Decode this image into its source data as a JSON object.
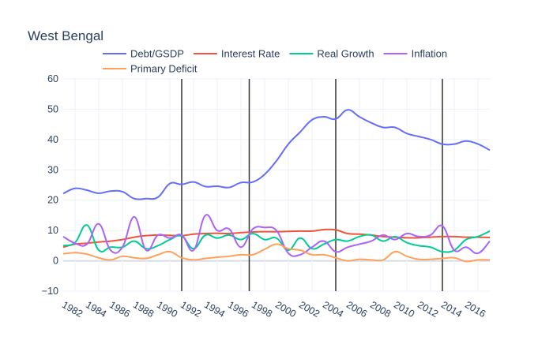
{
  "chart_data": {
    "type": "line",
    "title": "West Bengal",
    "xlabel": "",
    "ylabel": "",
    "xlim": [
      1981,
      2017
    ],
    "ylim": [
      -10,
      60
    ],
    "yticks": [
      -10,
      0,
      10,
      20,
      30,
      40,
      50,
      60
    ],
    "xticks": [
      1982,
      1984,
      1986,
      1988,
      1990,
      1992,
      1994,
      1996,
      1998,
      2000,
      2002,
      2004,
      2006,
      2008,
      2010,
      2012,
      2014,
      2016
    ],
    "grid": true,
    "legend_position": "top",
    "vertical_lines": [
      1991,
      1996.7,
      2004,
      2013
    ],
    "x": [
      1981,
      1982,
      1983,
      1984,
      1985,
      1986,
      1987,
      1988,
      1989,
      1990,
      1991,
      1992,
      1993,
      1994,
      1995,
      1996,
      1997,
      1998,
      1999,
      2000,
      2001,
      2002,
      2003,
      2004,
      2005,
      2006,
      2007,
      2008,
      2009,
      2010,
      2011,
      2012,
      2013,
      2014,
      2015,
      2016,
      2017
    ],
    "series": [
      {
        "name": "Debt/GSDP",
        "color": "#636efa",
        "values": [
          22.2,
          23.9,
          23.3,
          22.3,
          23.0,
          22.8,
          20.5,
          20.5,
          21.0,
          25.5,
          25.2,
          26.0,
          24.5,
          24.6,
          24.2,
          25.8,
          26.0,
          28.5,
          33.0,
          38.5,
          42.5,
          46.5,
          47.5,
          46.8,
          49.8,
          47.5,
          45.5,
          44.0,
          44.0,
          42.0,
          41.0,
          40.0,
          38.5,
          38.5,
          39.5,
          38.5,
          36.5
        ]
      },
      {
        "name": "Interest Rate",
        "color": "#ef553b",
        "values": [
          4.5,
          5.5,
          5.8,
          6.2,
          6.5,
          7.0,
          7.8,
          8.3,
          8.5,
          8.4,
          8.3,
          8.8,
          9.0,
          9.1,
          9.0,
          9.3,
          9.5,
          9.6,
          9.6,
          9.7,
          9.8,
          9.8,
          10.3,
          10.2,
          9.0,
          8.8,
          8.5,
          8.0,
          7.8,
          7.6,
          7.6,
          7.8,
          8.0,
          8.0,
          7.8,
          7.8,
          7.7
        ]
      },
      {
        "name": "Real Growth",
        "color": "#00cc96",
        "values": [
          5.0,
          6.0,
          11.8,
          3.5,
          4.5,
          4.5,
          6.5,
          4.0,
          5.0,
          7.0,
          8.2,
          4.0,
          8.5,
          7.5,
          8.5,
          7.0,
          9.0,
          7.0,
          7.5,
          3.5,
          7.5,
          4.0,
          5.5,
          7.0,
          6.5,
          8.0,
          8.5,
          6.5,
          8.0,
          6.0,
          5.0,
          4.5,
          3.0,
          3.5,
          7.0,
          8.0,
          9.8
        ]
      },
      {
        "name": "Inflation",
        "color": "#ab63fa",
        "values": [
          8.0,
          5.8,
          5.5,
          12.2,
          3.5,
          4.5,
          14.5,
          3.5,
          8.5,
          7.5,
          8.5,
          3.5,
          15.0,
          10.0,
          10.5,
          4.5,
          10.5,
          11.0,
          10.0,
          2.5,
          2.0,
          4.5,
          6.5,
          3.0,
          4.5,
          5.5,
          6.5,
          8.5,
          7.0,
          9.0,
          8.0,
          8.5,
          11.5,
          3.5,
          4.5,
          2.5,
          6.5
        ]
      },
      {
        "name": "Primary Deficit",
        "color": "#ffa15a",
        "values": [
          2.3,
          2.7,
          2.2,
          1.0,
          0.3,
          1.5,
          1.0,
          0.8,
          2.0,
          3.0,
          1.0,
          0.3,
          0.8,
          1.2,
          1.5,
          2.0,
          2.0,
          3.8,
          5.5,
          4.0,
          3.5,
          2.0,
          2.0,
          1.0,
          0.0,
          0.5,
          0.3,
          0.3,
          3.0,
          1.5,
          0.5,
          0.5,
          0.8,
          1.0,
          -0.2,
          0.3,
          0.3
        ]
      }
    ]
  }
}
